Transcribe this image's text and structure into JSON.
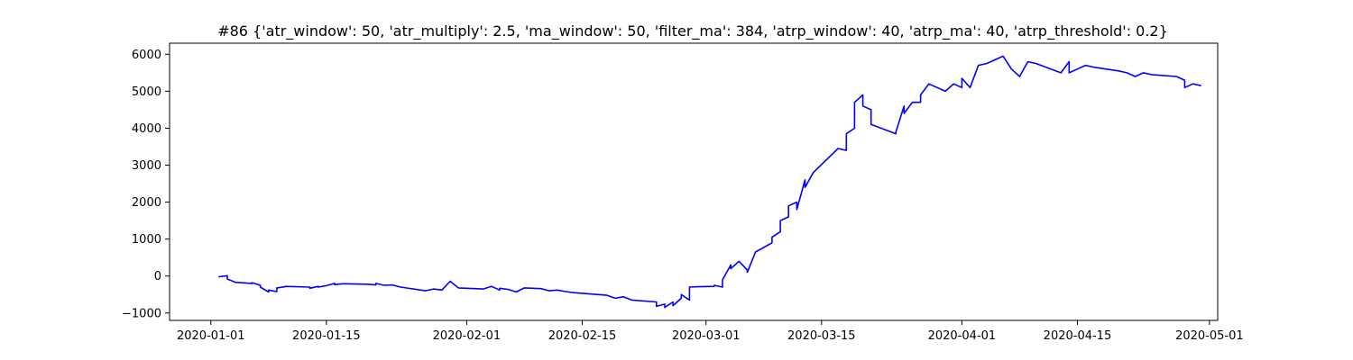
{
  "chart_data": {
    "type": "line",
    "title": "#86 {'atr_window': 50, 'atr_multiply': 2.5, 'ma_window': 50, 'filter_ma': 384, 'atrp_window': 40, 'atrp_ma': 40, 'atrp_threshold': 0.2}",
    "xlabel": "",
    "ylabel": "",
    "xlim": [
      "2019-12-27",
      "2020-05-02"
    ],
    "ylim": [
      -1200,
      6300
    ],
    "grid": false,
    "line_color": "#0000ff",
    "x_ticks": [
      "2020-01-01",
      "2020-01-15",
      "2020-02-01",
      "2020-02-15",
      "2020-03-01",
      "2020-03-15",
      "2020-04-01",
      "2020-04-15",
      "2020-05-01"
    ],
    "y_ticks": [
      -1000,
      0,
      1000,
      2000,
      3000,
      4000,
      5000,
      6000
    ],
    "series": [
      {
        "x": [
          "2020-01-02",
          "2020-01-02",
          "2020-01-03",
          "2020-01-03",
          "2020-01-04",
          "2020-01-06",
          "2020-01-06",
          "2020-01-07",
          "2020-01-07",
          "2020-01-08",
          "2020-01-08",
          "2020-01-09",
          "2020-01-09",
          "2020-01-10",
          "2020-01-10",
          "2020-01-13",
          "2020-01-13",
          "2020-01-14",
          "2020-01-14",
          "2020-01-15",
          "2020-01-16",
          "2020-01-16",
          "2020-01-17",
          "2020-01-20",
          "2020-01-21",
          "2020-01-21",
          "2020-01-22",
          "2020-01-23",
          "2020-01-24",
          "2020-01-27",
          "2020-01-28",
          "2020-01-29",
          "2020-01-30",
          "2020-01-31",
          "2020-02-01",
          "2020-02-03",
          "2020-02-04",
          "2020-02-05",
          "2020-02-05",
          "2020-02-06",
          "2020-02-07",
          "2020-02-08",
          "2020-02-10",
          "2020-02-11",
          "2020-02-12",
          "2020-02-13",
          "2020-02-14",
          "2020-02-18",
          "2020-02-19",
          "2020-02-20",
          "2020-02-21",
          "2020-02-24",
          "2020-02-24",
          "2020-02-25",
          "2020-02-25",
          "2020-02-26",
          "2020-02-26",
          "2020-02-27",
          "2020-02-27",
          "2020-02-28",
          "2020-02-28",
          "2020-02-29",
          "2020-03-02",
          "2020-03-02",
          "2020-03-03",
          "2020-03-03",
          "2020-03-04",
          "2020-03-04",
          "2020-03-05",
          "2020-03-06",
          "2020-03-06",
          "2020-03-07",
          "2020-03-09",
          "2020-03-09",
          "2020-03-10",
          "2020-03-10",
          "2020-03-11",
          "2020-03-11",
          "2020-03-12",
          "2020-03-12",
          "2020-03-13",
          "2020-03-13",
          "2020-03-14",
          "2020-03-17",
          "2020-03-18",
          "2020-03-18",
          "2020-03-19",
          "2020-03-19",
          "2020-03-20",
          "2020-03-20",
          "2020-03-21",
          "2020-03-21",
          "2020-03-24",
          "2020-03-24",
          "2020-03-25",
          "2020-03-25",
          "2020-03-26",
          "2020-03-27",
          "2020-03-27",
          "2020-03-28",
          "2020-03-30",
          "2020-03-31",
          "2020-04-01",
          "2020-04-01",
          "2020-04-02",
          "2020-04-03",
          "2020-04-04",
          "2020-04-06",
          "2020-04-07",
          "2020-04-08",
          "2020-04-09",
          "2020-04-10",
          "2020-04-13",
          "2020-04-14",
          "2020-04-14",
          "2020-04-15",
          "2020-04-16",
          "2020-04-17",
          "2020-04-20",
          "2020-04-21",
          "2020-04-22",
          "2020-04-23",
          "2020-04-24",
          "2020-04-27",
          "2020-04-28",
          "2020-04-28",
          "2020-04-29",
          "2020-04-30"
        ],
        "y": [
          0,
          -20,
          10,
          -80,
          -170,
          -200,
          -180,
          -250,
          -300,
          -430,
          -380,
          -420,
          -320,
          -290,
          -280,
          -300,
          -330,
          -280,
          -300,
          -260,
          -200,
          -230,
          -210,
          -220,
          -240,
          -200,
          -250,
          -240,
          -300,
          -400,
          -350,
          -380,
          -140,
          -320,
          -330,
          -350,
          -280,
          -380,
          -330,
          -360,
          -430,
          -320,
          -340,
          -400,
          -380,
          -420,
          -450,
          -520,
          -600,
          -560,
          -650,
          -700,
          -820,
          -760,
          -850,
          -700,
          -800,
          -600,
          -500,
          -650,
          -300,
          -290,
          -280,
          -250,
          -300,
          -100,
          300,
          200,
          400,
          160,
          100,
          650,
          900,
          1050,
          1200,
          1500,
          1600,
          1900,
          2000,
          1800,
          2600,
          2400,
          2800,
          3450,
          3400,
          3850,
          4000,
          4700,
          4900,
          4600,
          4500,
          4100,
          3850,
          3900,
          4600,
          4400,
          4700,
          4700,
          4900,
          5200,
          5000,
          5200,
          5100,
          5350,
          5100,
          5700,
          5750,
          5950,
          5600,
          5400,
          5800,
          5750,
          5500,
          5800,
          5500,
          5600,
          5700,
          5650,
          5550,
          5500,
          5400,
          5500,
          5450,
          5400,
          5300,
          5100,
          5200,
          5150
        ]
      }
    ]
  }
}
